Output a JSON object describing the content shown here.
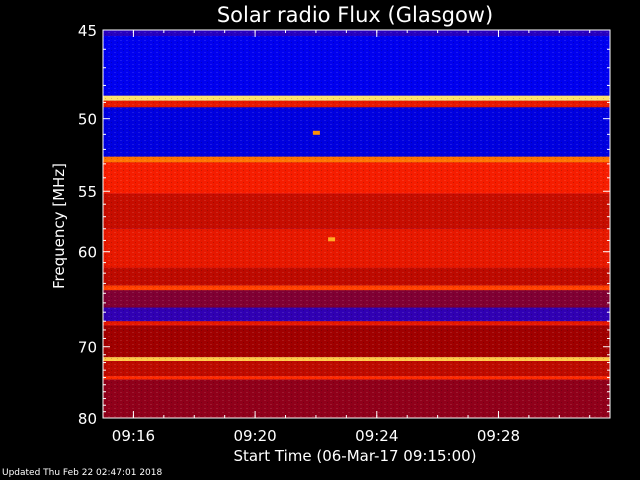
{
  "chart_data": {
    "type": "heatmap",
    "title": "Solar radio Flux (Glasgow)",
    "xlabel": "Start Time (06-Mar-17 09:15:00)",
    "ylabel": "Frequency [MHz]",
    "x_ticks": [
      "09:16",
      "09:20",
      "09:24",
      "09:28"
    ],
    "x_range": [
      "09:15:00",
      "09:31:40"
    ],
    "y_ticks": [
      45,
      50,
      55,
      60,
      70,
      80
    ],
    "y_range": [
      45,
      80
    ],
    "y_scale": "reciprocal",
    "colormap": [
      "#000060",
      "#0000ff",
      "#a00000",
      "#ff2000",
      "#ff9000",
      "#ffff90"
    ],
    "intensity_bands": [
      {
        "f1": 45.0,
        "f2": 45.3,
        "level": 0.25
      },
      {
        "f1": 45.3,
        "f2": 48.6,
        "level": 0.18
      },
      {
        "f1": 48.6,
        "f2": 48.9,
        "level": 0.95
      },
      {
        "f1": 48.9,
        "f2": 49.3,
        "level": 0.55
      },
      {
        "f1": 49.3,
        "f2": 52.5,
        "level": 0.16
      },
      {
        "f1": 52.5,
        "f2": 52.9,
        "level": 0.75
      },
      {
        "f1": 52.9,
        "f2": 55.2,
        "level": 0.58
      },
      {
        "f1": 55.2,
        "f2": 58.0,
        "level": 0.48
      },
      {
        "f1": 58.0,
        "f2": 61.5,
        "level": 0.55
      },
      {
        "f1": 61.5,
        "f2": 63.2,
        "level": 0.46
      },
      {
        "f1": 63.2,
        "f2": 63.7,
        "level": 0.66
      },
      {
        "f1": 63.7,
        "f2": 65.5,
        "level": 0.36
      },
      {
        "f1": 65.5,
        "f2": 67.0,
        "level": 0.26
      },
      {
        "f1": 67.0,
        "f2": 67.5,
        "level": 0.55
      },
      {
        "f1": 67.5,
        "f2": 71.3,
        "level": 0.4
      },
      {
        "f1": 71.3,
        "f2": 71.8,
        "level": 0.9
      },
      {
        "f1": 71.8,
        "f2": 73.8,
        "level": 0.46
      },
      {
        "f1": 73.8,
        "f2": 74.3,
        "level": 0.62
      },
      {
        "f1": 74.3,
        "f2": 80.0,
        "level": 0.38
      }
    ],
    "events": [
      {
        "time": "09:22:30",
        "freq": 58.9,
        "level": 0.85
      },
      {
        "time": "09:22:00",
        "freq": 50.9,
        "level": 0.8
      }
    ]
  },
  "footer_text": "Updated Thu Feb 22 02:47:01 2018"
}
